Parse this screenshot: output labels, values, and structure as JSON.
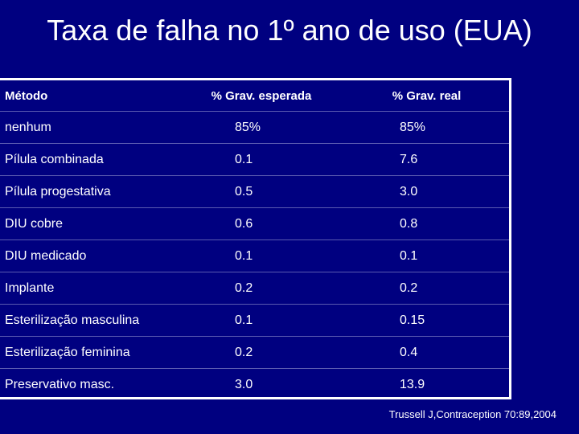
{
  "slide": {
    "title": "Taxa de falha no 1º ano de uso (EUA)",
    "source": "Trussell J,Contraception 70:89,2004"
  },
  "table": {
    "headers": [
      "Método",
      "% Grav. esperada",
      "% Grav. real"
    ],
    "rows": [
      [
        "nenhum",
        "85%",
        "85%"
      ],
      [
        "Pílula combinada",
        "0.1",
        "7.6"
      ],
      [
        "Pílula progestativa",
        "0.5",
        "3.0"
      ],
      [
        "DIU cobre",
        "0.6",
        "0.8"
      ],
      [
        "DIU medicado",
        "0.1",
        "0.1"
      ],
      [
        "Implante",
        "0.2",
        "0.2"
      ],
      [
        "Esterilização masculina",
        "0.1",
        "0.15"
      ],
      [
        "Esterilização feminina",
        "0.2",
        "0.4"
      ],
      [
        "Preservativo masc.",
        "3.0",
        "13.9"
      ]
    ]
  },
  "colors": {
    "background": "#000080",
    "text": "#ffffff"
  }
}
